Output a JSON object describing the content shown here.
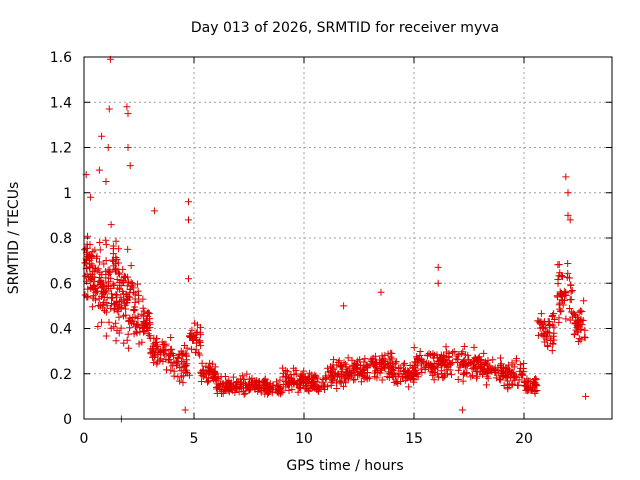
{
  "colors": {
    "points": "#e00000",
    "grid": "#a0a0a0",
    "axis": "#000000"
  },
  "chart_data": {
    "type": "scatter",
    "title": "Day 013 of 2026, SRMTID for receiver myva",
    "xlabel": "GPS time / hours",
    "ylabel": "SRMTID / TECUs",
    "xlim": [
      0,
      24
    ],
    "ylim": [
      0,
      1.6
    ],
    "grid": true,
    "marker": "+",
    "x_ticks": [
      0,
      5,
      10,
      15,
      20
    ],
    "x_tick_labels": [
      "0",
      "5",
      "10",
      "15",
      "20"
    ],
    "y_ticks": [
      0,
      0.2,
      0.4,
      0.6,
      0.8,
      1.0,
      1.2,
      1.4,
      1.6
    ],
    "y_tick_labels": [
      "0",
      "0.2",
      "0.4",
      "0.6",
      "0.8",
      "1",
      "1.2",
      "1.4",
      "1.6"
    ],
    "envelope": [
      {
        "start": 0.0,
        "end": 0.5,
        "center": 0.65,
        "spread": 0.25,
        "n": 60
      },
      {
        "start": 0.5,
        "end": 1.0,
        "center": 0.6,
        "spread": 0.3,
        "n": 50
      },
      {
        "start": 1.0,
        "end": 1.5,
        "center": 0.6,
        "spread": 0.4,
        "n": 55
      },
      {
        "start": 1.5,
        "end": 2.0,
        "center": 0.55,
        "spread": 0.35,
        "n": 50
      },
      {
        "start": 2.0,
        "end": 2.5,
        "center": 0.5,
        "spread": 0.3,
        "n": 45
      },
      {
        "start": 2.5,
        "end": 3.0,
        "center": 0.42,
        "spread": 0.15,
        "n": 40
      },
      {
        "start": 3.0,
        "end": 4.0,
        "center": 0.3,
        "spread": 0.12,
        "n": 60
      },
      {
        "start": 4.0,
        "end": 4.8,
        "center": 0.25,
        "spread": 0.15,
        "n": 45
      },
      {
        "start": 4.8,
        "end": 5.3,
        "center": 0.35,
        "spread": 0.12,
        "n": 35
      },
      {
        "start": 5.3,
        "end": 6.0,
        "center": 0.2,
        "spread": 0.08,
        "n": 45
      },
      {
        "start": 6.0,
        "end": 7.0,
        "center": 0.14,
        "spread": 0.07,
        "n": 60
      },
      {
        "start": 7.0,
        "end": 8.0,
        "center": 0.15,
        "spread": 0.07,
        "n": 60
      },
      {
        "start": 8.0,
        "end": 9.0,
        "center": 0.14,
        "spread": 0.06,
        "n": 60
      },
      {
        "start": 9.0,
        "end": 10.0,
        "center": 0.17,
        "spread": 0.08,
        "n": 60
      },
      {
        "start": 10.0,
        "end": 11.0,
        "center": 0.16,
        "spread": 0.07,
        "n": 60
      },
      {
        "start": 11.0,
        "end": 12.0,
        "center": 0.2,
        "spread": 0.1,
        "n": 60
      },
      {
        "start": 12.0,
        "end": 13.0,
        "center": 0.22,
        "spread": 0.1,
        "n": 60
      },
      {
        "start": 13.0,
        "end": 14.0,
        "center": 0.24,
        "spread": 0.12,
        "n": 60
      },
      {
        "start": 14.0,
        "end": 15.0,
        "center": 0.2,
        "spread": 0.1,
        "n": 60
      },
      {
        "start": 15.0,
        "end": 16.0,
        "center": 0.24,
        "spread": 0.12,
        "n": 60
      },
      {
        "start": 16.0,
        "end": 17.0,
        "center": 0.25,
        "spread": 0.12,
        "n": 60
      },
      {
        "start": 17.0,
        "end": 18.0,
        "center": 0.24,
        "spread": 0.1,
        "n": 60
      },
      {
        "start": 18.0,
        "end": 19.0,
        "center": 0.22,
        "spread": 0.1,
        "n": 60
      },
      {
        "start": 19.0,
        "end": 20.0,
        "center": 0.2,
        "spread": 0.1,
        "n": 60
      },
      {
        "start": 20.0,
        "end": 20.6,
        "center": 0.15,
        "spread": 0.06,
        "n": 40
      },
      {
        "start": 20.6,
        "end": 21.5,
        "center": 0.4,
        "spread": 0.15,
        "n": 45
      },
      {
        "start": 21.5,
        "end": 22.2,
        "center": 0.55,
        "spread": 0.25,
        "n": 45
      },
      {
        "start": 22.2,
        "end": 22.8,
        "center": 0.4,
        "spread": 0.18,
        "n": 40
      }
    ],
    "outliers": [
      {
        "x": 1.2,
        "y": 1.59
      },
      {
        "x": 1.15,
        "y": 1.37
      },
      {
        "x": 1.95,
        "y": 1.38
      },
      {
        "x": 2.0,
        "y": 1.35
      },
      {
        "x": 0.8,
        "y": 1.25
      },
      {
        "x": 1.1,
        "y": 1.2
      },
      {
        "x": 2.0,
        "y": 1.2
      },
      {
        "x": 2.1,
        "y": 1.12
      },
      {
        "x": 0.1,
        "y": 1.08
      },
      {
        "x": 0.7,
        "y": 1.1
      },
      {
        "x": 1.0,
        "y": 1.05
      },
      {
        "x": 0.3,
        "y": 0.98
      },
      {
        "x": 4.75,
        "y": 0.96
      },
      {
        "x": 4.75,
        "y": 0.88
      },
      {
        "x": 3.2,
        "y": 0.92
      },
      {
        "x": 4.75,
        "y": 0.62
      },
      {
        "x": 16.1,
        "y": 0.67
      },
      {
        "x": 16.1,
        "y": 0.6
      },
      {
        "x": 21.9,
        "y": 1.07
      },
      {
        "x": 22.0,
        "y": 1.0
      },
      {
        "x": 22.0,
        "y": 0.9
      },
      {
        "x": 22.1,
        "y": 0.88
      },
      {
        "x": 13.5,
        "y": 0.56
      },
      {
        "x": 11.8,
        "y": 0.5
      },
      {
        "x": 1.7,
        "y": 0.0
      },
      {
        "x": 4.6,
        "y": 0.04
      },
      {
        "x": 17.2,
        "y": 0.04
      },
      {
        "x": 22.8,
        "y": 0.1
      }
    ]
  }
}
